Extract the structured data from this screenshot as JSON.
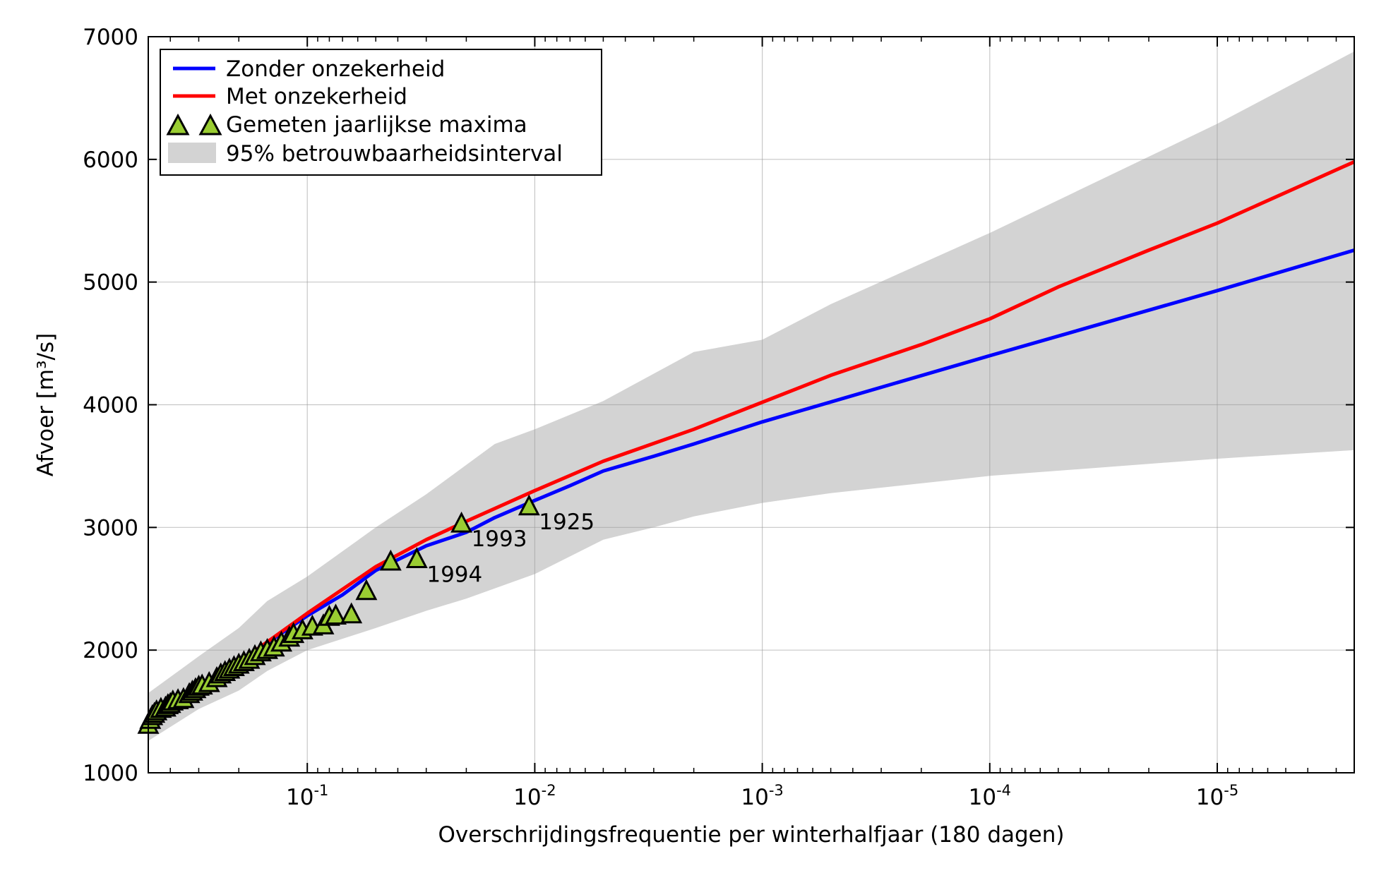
{
  "chart_data": {
    "type": "line",
    "xlabel": "Overschrijdingsfrequentie per winterhalfjaar (180 dagen)",
    "ylabel": "Afvoer [m³/s]",
    "x_scale": "log",
    "x_reversed": true,
    "xlim": [
      0.5,
      2.5e-06
    ],
    "ylim": [
      1000,
      7000
    ],
    "yticks": [
      1000,
      2000,
      3000,
      4000,
      5000,
      6000,
      7000
    ],
    "xticks": [
      {
        "value": 0.1,
        "base": "10",
        "exp": "-1"
      },
      {
        "value": 0.01,
        "base": "10",
        "exp": "-2"
      },
      {
        "value": 0.001,
        "base": "10",
        "exp": "-3"
      },
      {
        "value": 0.0001,
        "base": "10",
        "exp": "-4"
      },
      {
        "value": 1e-05,
        "base": "10",
        "exp": "-5"
      }
    ],
    "grid": true,
    "legend_position": "top-left",
    "series": [
      {
        "name": "Zonder onzekerheid",
        "color": "#0000ff",
        "points": [
          [
            0.5,
            1450
          ],
          [
            0.3,
            1700
          ],
          [
            0.2,
            1900
          ],
          [
            0.1,
            2280
          ],
          [
            0.07,
            2450
          ],
          [
            0.05,
            2650
          ],
          [
            0.03,
            2850
          ],
          [
            0.02,
            2960
          ],
          [
            0.015,
            3080
          ],
          [
            0.01,
            3220
          ],
          [
            0.007,
            3340
          ],
          [
            0.005,
            3460
          ],
          [
            0.003,
            3580
          ],
          [
            0.002,
            3680
          ],
          [
            0.001,
            3860
          ],
          [
            0.0001,
            4400
          ],
          [
            1e-05,
            4930
          ],
          [
            2.5e-06,
            5260
          ]
        ]
      },
      {
        "name": "Met onzekerheid",
        "color": "#ff0000",
        "points": [
          [
            0.5,
            1450
          ],
          [
            0.3,
            1700
          ],
          [
            0.2,
            1900
          ],
          [
            0.1,
            2300
          ],
          [
            0.05,
            2680
          ],
          [
            0.03,
            2900
          ],
          [
            0.02,
            3050
          ],
          [
            0.01,
            3300
          ],
          [
            0.005,
            3540
          ],
          [
            0.002,
            3800
          ],
          [
            0.001,
            4020
          ],
          [
            0.0005,
            4240
          ],
          [
            0.0002,
            4490
          ],
          [
            0.0001,
            4700
          ],
          [
            5e-05,
            4960
          ],
          [
            2e-05,
            5260
          ],
          [
            1e-05,
            5480
          ],
          [
            2.5e-06,
            5980
          ]
        ]
      }
    ],
    "band": {
      "name": "95% betrouwbaarheidsinterval",
      "color": "#d3d3d3",
      "upper": [
        [
          0.5,
          1650
        ],
        [
          0.3,
          1950
        ],
        [
          0.2,
          2180
        ],
        [
          0.15,
          2400
        ],
        [
          0.1,
          2600
        ],
        [
          0.05,
          3000
        ],
        [
          0.03,
          3270
        ],
        [
          0.015,
          3680
        ],
        [
          0.01,
          3800
        ],
        [
          0.005,
          4030
        ],
        [
          0.002,
          4430
        ],
        [
          0.001,
          4530
        ],
        [
          0.0005,
          4820
        ],
        [
          0.0001,
          5400
        ],
        [
          1e-05,
          6290
        ],
        [
          2.5e-06,
          6880
        ]
      ],
      "lower": [
        [
          0.5,
          1260
        ],
        [
          0.3,
          1520
        ],
        [
          0.2,
          1670
        ],
        [
          0.15,
          1830
        ],
        [
          0.1,
          2000
        ],
        [
          0.05,
          2180
        ],
        [
          0.03,
          2320
        ],
        [
          0.02,
          2420
        ],
        [
          0.01,
          2620
        ],
        [
          0.005,
          2900
        ],
        [
          0.003,
          3000
        ],
        [
          0.002,
          3090
        ],
        [
          0.001,
          3200
        ],
        [
          0.0005,
          3280
        ],
        [
          0.0001,
          3420
        ],
        [
          1e-05,
          3560
        ],
        [
          2.5e-06,
          3630
        ]
      ]
    },
    "measured": {
      "name": "Gemeten jaarlijkse maxima",
      "marker_color": "#9acd32",
      "points": [
        [
          0.5,
          1390
        ],
        [
          0.49,
          1430
        ],
        [
          0.48,
          1460
        ],
        [
          0.47,
          1480
        ],
        [
          0.46,
          1500
        ],
        [
          0.44,
          1520
        ],
        [
          0.42,
          1530
        ],
        [
          0.41,
          1550
        ],
        [
          0.4,
          1560
        ],
        [
          0.39,
          1580
        ],
        [
          0.37,
          1590
        ],
        [
          0.35,
          1600
        ],
        [
          0.33,
          1640
        ],
        [
          0.32,
          1660
        ],
        [
          0.31,
          1680
        ],
        [
          0.3,
          1700
        ],
        [
          0.29,
          1710
        ],
        [
          0.27,
          1730
        ],
        [
          0.25,
          1770
        ],
        [
          0.24,
          1800
        ],
        [
          0.23,
          1820
        ],
        [
          0.22,
          1840
        ],
        [
          0.21,
          1860
        ],
        [
          0.2,
          1880
        ],
        [
          0.19,
          1900
        ],
        [
          0.18,
          1920
        ],
        [
          0.17,
          1950
        ],
        [
          0.16,
          1980
        ],
        [
          0.15,
          2000
        ],
        [
          0.14,
          2020
        ],
        [
          0.13,
          2060
        ],
        [
          0.12,
          2100
        ],
        [
          0.115,
          2130
        ],
        [
          0.105,
          2160
        ],
        [
          0.095,
          2190
        ],
        [
          0.085,
          2200
        ],
        [
          0.08,
          2270
        ],
        [
          0.075,
          2280
        ],
        [
          0.064,
          2290
        ],
        [
          0.055,
          2480
        ],
        [
          0.043,
          2720
        ],
        [
          0.033,
          2740
        ],
        [
          0.021,
          3030
        ],
        [
          0.0106,
          3170
        ]
      ],
      "annotations": [
        {
          "label": "1993",
          "x": 0.021,
          "y": 3030
        },
        {
          "label": "1994",
          "x": 0.033,
          "y": 2740
        },
        {
          "label": "1925",
          "x": 0.0106,
          "y": 3170
        }
      ]
    }
  }
}
